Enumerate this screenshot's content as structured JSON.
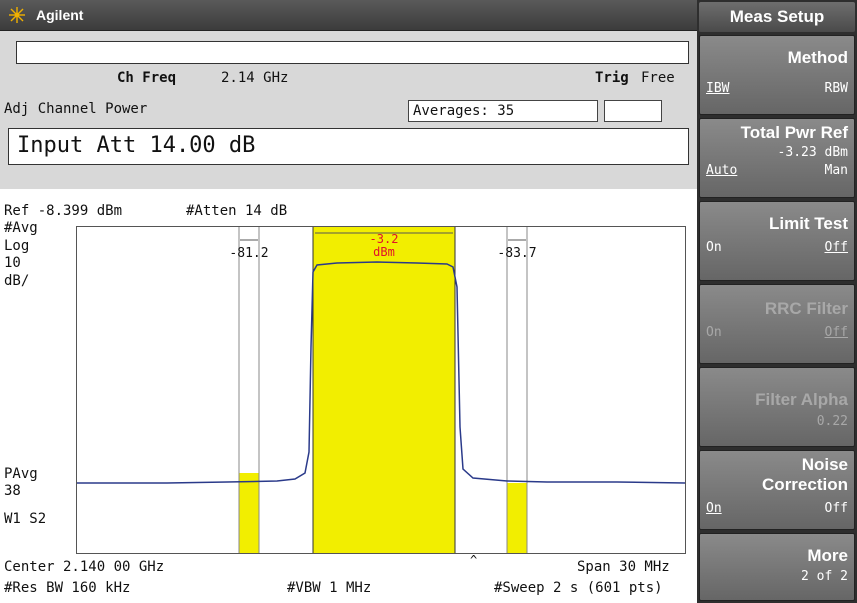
{
  "window": {
    "brand": "Agilent"
  },
  "screen": {
    "ch_freq_label": "Ch Freq",
    "ch_freq_value": "2.14 GHz",
    "trig_label": "Trig",
    "trig_value": "Free",
    "measurement": "Adj Channel Power",
    "averages": "Averages: 35",
    "input_att": "Input Att 14.00 dB",
    "ref_level": "Ref -8.399 dBm",
    "atten": "#Atten 14 dB",
    "avg_flag": "#Avg",
    "scale_type": "Log",
    "scale_value": "10",
    "scale_unit": "dB/",
    "pavg_label": "PAvg",
    "pavg_count": "38",
    "w1_s2": "W1  S2",
    "center": "Center 2.140 00 GHz",
    "span": "Span 30 MHz",
    "res_bw": "#Res BW 160 kHz",
    "vbw": "#VBW 1 MHz",
    "sweep": "#Sweep 2 s (601 pts)",
    "center_marker": "^"
  },
  "channels": {
    "main_power": "-3.2",
    "main_unit": "dBm",
    "lower_adj": "-81.2",
    "upper_adj": "-83.7"
  },
  "colors": {
    "channel_fill": "#f2ee00",
    "trace": "#2a3a8a",
    "main_label": "#e0142a"
  },
  "softkeys": {
    "panel_title": "Meas Setup",
    "method": {
      "label": "Method",
      "option_a": "IBW",
      "option_b": "RBW"
    },
    "total_pwr_ref": {
      "label": "Total Pwr Ref",
      "value": "-3.23 dBm",
      "option_a": "Auto",
      "option_b": "Man"
    },
    "limit_test": {
      "label": "Limit Test",
      "option_a": "On",
      "option_b": "Off"
    },
    "rrc_filter": {
      "label": "RRC Filter",
      "option_a": "On",
      "option_b": "Off"
    },
    "filter_alpha": {
      "label": "Filter Alpha",
      "value": "0.22"
    },
    "noise_correction": {
      "label_line1": "Noise",
      "label_line2": "Correction",
      "option_a": "On",
      "option_b": "Off"
    },
    "more": {
      "label": "More",
      "value": "2 of 2"
    }
  }
}
